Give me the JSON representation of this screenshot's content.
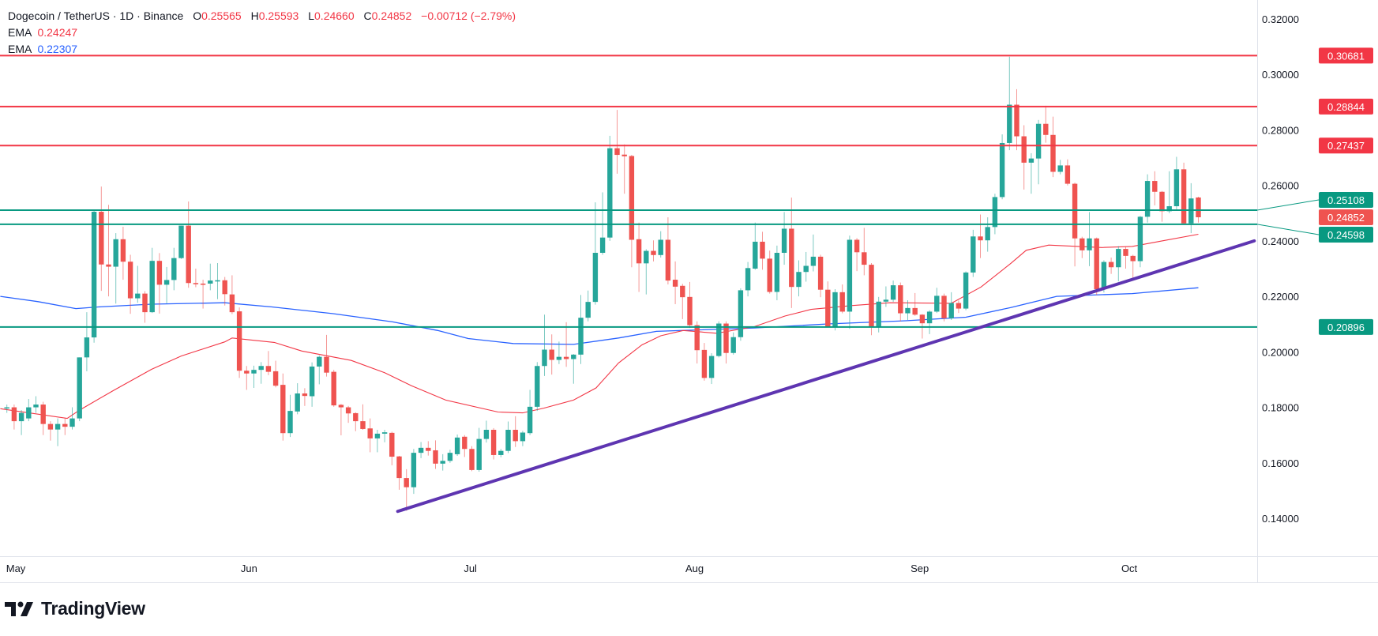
{
  "header": {
    "symbol": "Dogecoin / TetherUS · 1D · Binance",
    "open_label": "O",
    "open": "0.25565",
    "high_label": "H",
    "high": "0.25593",
    "low_label": "L",
    "low": "0.24660",
    "close_label": "C",
    "close": "0.24852",
    "change": "−0.00712 (−2.79%)",
    "ema1_label": "EMA",
    "ema1_value": "0.24247",
    "ema2_label": "EMA",
    "ema2_value": "0.22307"
  },
  "footer": {
    "logo_text": "TradingView"
  },
  "chart_data": {
    "type": "candlestick",
    "title": "Dogecoin / TetherUS · 1D · Binance",
    "ylim": [
      0.12633,
      0.32684
    ],
    "grid": false,
    "colors": {
      "up": "#26a69a",
      "down": "#ef5350",
      "ema_fast": "#f23645",
      "ema_slow": "#2962ff",
      "trendline": "#5e35b1",
      "resistance": "#f23645",
      "support": "#089981",
      "last_price": "#ef5350"
    },
    "y_ticks": [
      "0.32000",
      "0.30000",
      "0.28000",
      "0.26000",
      "0.24000",
      "0.22000",
      "0.20000",
      "0.18000",
      "0.16000",
      "0.14000"
    ],
    "x_ticks": [
      {
        "label": "May",
        "bar": 1.2
      },
      {
        "label": "Jun",
        "bar": 33.5
      },
      {
        "label": "Jul",
        "bar": 64.2
      },
      {
        "label": "Aug",
        "bar": 94.7
      },
      {
        "label": "Sep",
        "bar": 125.7
      },
      {
        "label": "Oct",
        "bar": 154.7
      }
    ],
    "ohlc": [
      [
        0.18,
        0.181,
        0.178,
        0.18
      ],
      [
        0.18,
        0.181,
        0.172,
        0.175
      ],
      [
        0.175,
        0.179,
        0.17,
        0.178
      ],
      [
        0.176,
        0.183,
        0.175,
        0.18
      ],
      [
        0.18,
        0.184,
        0.178,
        0.181
      ],
      [
        0.181,
        0.182,
        0.17,
        0.174
      ],
      [
        0.174,
        0.175,
        0.168,
        0.172
      ],
      [
        0.172,
        0.176,
        0.166,
        0.174
      ],
      [
        0.174,
        0.176,
        0.17,
        0.173
      ],
      [
        0.173,
        0.18,
        0.172,
        0.176
      ],
      [
        0.176,
        0.198,
        0.175,
        0.198
      ],
      [
        0.198,
        0.2143,
        0.193,
        0.2052
      ],
      [
        0.2052,
        0.251,
        0.2033,
        0.2505
      ],
      [
        0.2505,
        0.2596,
        0.222,
        0.2315
      ],
      [
        0.2315,
        0.253,
        0.22,
        0.2307
      ],
      [
        0.2307,
        0.2428,
        0.2174,
        0.2406
      ],
      [
        0.2406,
        0.2451,
        0.226,
        0.2325
      ],
      [
        0.2325,
        0.235,
        0.2137,
        0.2193
      ],
      [
        0.2193,
        0.231,
        0.2177,
        0.221
      ],
      [
        0.221,
        0.2219,
        0.2105,
        0.2143
      ],
      [
        0.2143,
        0.2375,
        0.214,
        0.2328
      ],
      [
        0.2328,
        0.2356,
        0.2138,
        0.2242
      ],
      [
        0.2242,
        0.2306,
        0.2175,
        0.2259
      ],
      [
        0.2259,
        0.2375,
        0.2222,
        0.2338
      ],
      [
        0.2338,
        0.2455,
        0.2335,
        0.2455
      ],
      [
        0.2455,
        0.2542,
        0.2231,
        0.2248
      ],
      [
        0.2248,
        0.23,
        0.2233,
        0.2246
      ],
      [
        0.2246,
        0.226,
        0.2156,
        0.2245
      ],
      [
        0.2246,
        0.2318,
        0.2222,
        0.2257
      ],
      [
        0.2257,
        0.232,
        0.219,
        0.2258
      ],
      [
        0.2258,
        0.227,
        0.2167,
        0.2208
      ],
      [
        0.2207,
        0.2276,
        0.2136,
        0.2143
      ],
      [
        0.2146,
        0.216,
        0.1906,
        0.1932
      ],
      [
        0.1932,
        0.1949,
        0.1863,
        0.1922
      ],
      [
        0.1922,
        0.195,
        0.187,
        0.1935
      ],
      [
        0.1935,
        0.1963,
        0.1885,
        0.1949
      ],
      [
        0.1949,
        0.2003,
        0.1916,
        0.1928
      ],
      [
        0.193,
        0.1968,
        0.1872,
        0.1878
      ],
      [
        0.1881,
        0.1922,
        0.168,
        0.1707
      ],
      [
        0.1707,
        0.1845,
        0.1693,
        0.1787
      ],
      [
        0.1785,
        0.1887,
        0.1775,
        0.185
      ],
      [
        0.185,
        0.1869,
        0.1805,
        0.1841
      ],
      [
        0.184,
        0.1962,
        0.1802,
        0.1947
      ],
      [
        0.1947,
        0.1987,
        0.1883,
        0.1982
      ],
      [
        0.1982,
        0.2061,
        0.1911,
        0.1925
      ],
      [
        0.1928,
        0.1935,
        0.1802,
        0.1807
      ],
      [
        0.1809,
        0.1812,
        0.1699,
        0.18
      ],
      [
        0.18,
        0.1805,
        0.1744,
        0.1778
      ],
      [
        0.1779,
        0.1782,
        0.1714,
        0.175
      ],
      [
        0.175,
        0.1811,
        0.1719,
        0.1722
      ],
      [
        0.1724,
        0.176,
        0.1638,
        0.1688
      ],
      [
        0.1688,
        0.1719,
        0.1638,
        0.1705
      ],
      [
        0.1705,
        0.1719,
        0.1674,
        0.171
      ],
      [
        0.1708,
        0.1712,
        0.1591,
        0.1622
      ],
      [
        0.1623,
        0.1625,
        0.1503,
        0.1545
      ],
      [
        0.1545,
        0.1577,
        0.1427,
        0.1512
      ],
      [
        0.1512,
        0.165,
        0.1488,
        0.1636
      ],
      [
        0.1636,
        0.1675,
        0.1617,
        0.1654
      ],
      [
        0.1654,
        0.1678,
        0.1626,
        0.1643
      ],
      [
        0.1645,
        0.1681,
        0.1578,
        0.1597
      ],
      [
        0.1597,
        0.1631,
        0.1572,
        0.1607
      ],
      [
        0.1607,
        0.1647,
        0.16,
        0.1636
      ],
      [
        0.1631,
        0.1702,
        0.1625,
        0.1691
      ],
      [
        0.1694,
        0.17,
        0.1621,
        0.165
      ],
      [
        0.165,
        0.166,
        0.157,
        0.1574
      ],
      [
        0.1574,
        0.1726,
        0.1568,
        0.1686
      ],
      [
        0.1686,
        0.1752,
        0.1673,
        0.1719
      ],
      [
        0.1719,
        0.1725,
        0.1612,
        0.1628
      ],
      [
        0.1628,
        0.165,
        0.162,
        0.1643
      ],
      [
        0.1643,
        0.1749,
        0.1635,
        0.1719
      ],
      [
        0.1719,
        0.1768,
        0.1657,
        0.1678
      ],
      [
        0.1678,
        0.1715,
        0.166,
        0.1709
      ],
      [
        0.1707,
        0.1863,
        0.17,
        0.1802
      ],
      [
        0.1802,
        0.1963,
        0.1787,
        0.1949
      ],
      [
        0.1949,
        0.2134,
        0.1913,
        0.2008
      ],
      [
        0.2008,
        0.2063,
        0.1918,
        0.1971
      ],
      [
        0.1971,
        0.2037,
        0.1956,
        0.1982
      ],
      [
        0.1982,
        0.2107,
        0.1946,
        0.1974
      ],
      [
        0.1974,
        0.1992,
        0.1885,
        0.199
      ],
      [
        0.199,
        0.2205,
        0.1956,
        0.2123
      ],
      [
        0.2123,
        0.2221,
        0.211,
        0.218
      ],
      [
        0.218,
        0.2539,
        0.217,
        0.2357
      ],
      [
        0.2357,
        0.2575,
        0.235,
        0.2412
      ],
      [
        0.2412,
        0.2779,
        0.24,
        0.2734
      ],
      [
        0.2734,
        0.2872,
        0.2642,
        0.271
      ],
      [
        0.2711,
        0.2748,
        0.257,
        0.2705
      ],
      [
        0.2706,
        0.271,
        0.2305,
        0.2404
      ],
      [
        0.2406,
        0.2466,
        0.2216,
        0.2319
      ],
      [
        0.2319,
        0.237,
        0.2207,
        0.2364
      ],
      [
        0.2364,
        0.2402,
        0.2326,
        0.2349
      ],
      [
        0.2349,
        0.2435,
        0.234,
        0.2404
      ],
      [
        0.2404,
        0.2485,
        0.2243,
        0.2257
      ],
      [
        0.226,
        0.2326,
        0.2172,
        0.2235
      ],
      [
        0.2238,
        0.2245,
        0.2118,
        0.2197
      ],
      [
        0.2198,
        0.2252,
        0.2086,
        0.2096
      ],
      [
        0.2096,
        0.211,
        0.1958,
        0.2006
      ],
      [
        0.2007,
        0.2032,
        0.1896,
        0.1906
      ],
      [
        0.1906,
        0.1995,
        0.1884,
        0.1985
      ],
      [
        0.1985,
        0.211,
        0.198,
        0.2102
      ],
      [
        0.2102,
        0.211,
        0.1958,
        0.1996
      ],
      [
        0.1996,
        0.207,
        0.199,
        0.2053
      ],
      [
        0.2053,
        0.2229,
        0.204,
        0.2222
      ],
      [
        0.2222,
        0.2324,
        0.22,
        0.2302
      ],
      [
        0.23,
        0.2466,
        0.2296,
        0.2397
      ],
      [
        0.2397,
        0.2433,
        0.2296,
        0.2336
      ],
      [
        0.2336,
        0.2365,
        0.221,
        0.2216
      ],
      [
        0.2216,
        0.2383,
        0.2186,
        0.2357
      ],
      [
        0.2357,
        0.2504,
        0.2314,
        0.2444
      ],
      [
        0.2444,
        0.2556,
        0.2158,
        0.2234
      ],
      [
        0.2234,
        0.233,
        0.22,
        0.2288
      ],
      [
        0.2288,
        0.236,
        0.2253,
        0.231
      ],
      [
        0.231,
        0.2423,
        0.229,
        0.2343
      ],
      [
        0.2343,
        0.235,
        0.2197,
        0.2224
      ],
      [
        0.2224,
        0.2254,
        0.209,
        0.2091
      ],
      [
        0.2091,
        0.2226,
        0.2077,
        0.2215
      ],
      [
        0.2215,
        0.2243,
        0.2139,
        0.2145
      ],
      [
        0.2145,
        0.2419,
        0.2083,
        0.2404
      ],
      [
        0.2404,
        0.241,
        0.2291,
        0.2359
      ],
      [
        0.2359,
        0.2447,
        0.2276,
        0.2314
      ],
      [
        0.2314,
        0.232,
        0.206,
        0.2091
      ],
      [
        0.2091,
        0.2198,
        0.207,
        0.2181
      ],
      [
        0.2181,
        0.2236,
        0.2162,
        0.2188
      ],
      [
        0.2188,
        0.2257,
        0.218,
        0.224
      ],
      [
        0.224,
        0.225,
        0.211,
        0.2139
      ],
      [
        0.2139,
        0.2186,
        0.2115,
        0.2158
      ],
      [
        0.2158,
        0.2212,
        0.213,
        0.2134
      ],
      [
        0.2134,
        0.2136,
        0.2048,
        0.2103
      ],
      [
        0.2103,
        0.215,
        0.2064,
        0.2145
      ],
      [
        0.2145,
        0.2231,
        0.214,
        0.2202
      ],
      [
        0.2202,
        0.221,
        0.211,
        0.2121
      ],
      [
        0.2121,
        0.2215,
        0.2115,
        0.2176
      ],
      [
        0.2176,
        0.2185,
        0.214,
        0.2156
      ],
      [
        0.2156,
        0.229,
        0.215,
        0.2286
      ],
      [
        0.2286,
        0.244,
        0.227,
        0.2416
      ],
      [
        0.2416,
        0.2495,
        0.2338,
        0.2402
      ],
      [
        0.2402,
        0.2485,
        0.2361,
        0.245
      ],
      [
        0.245,
        0.257,
        0.2424,
        0.2558
      ],
      [
        0.2558,
        0.2784,
        0.255,
        0.2753
      ],
      [
        0.2753,
        0.3064,
        0.2727,
        0.2891
      ],
      [
        0.2891,
        0.2947,
        0.2727,
        0.2777
      ],
      [
        0.2777,
        0.2817,
        0.2585,
        0.2682
      ],
      [
        0.2682,
        0.2716,
        0.257,
        0.2697
      ],
      [
        0.2697,
        0.2836,
        0.2604,
        0.2822
      ],
      [
        0.2822,
        0.2887,
        0.2754,
        0.2782
      ],
      [
        0.2782,
        0.2848,
        0.263,
        0.2649
      ],
      [
        0.2649,
        0.2692,
        0.264,
        0.2672
      ],
      [
        0.2672,
        0.2694,
        0.26,
        0.2606
      ],
      [
        0.2606,
        0.261,
        0.2308,
        0.2409
      ],
      [
        0.2409,
        0.2415,
        0.2338,
        0.2366
      ],
      [
        0.2366,
        0.2504,
        0.2309,
        0.2409
      ],
      [
        0.2409,
        0.2412,
        0.2205,
        0.2226
      ],
      [
        0.2226,
        0.233,
        0.2214,
        0.2324
      ],
      [
        0.2324,
        0.234,
        0.2281,
        0.2305
      ],
      [
        0.2305,
        0.2381,
        0.2254,
        0.2371
      ],
      [
        0.2371,
        0.238,
        0.23,
        0.2346
      ],
      [
        0.2346,
        0.235,
        0.2262,
        0.2327
      ],
      [
        0.2327,
        0.249,
        0.2305,
        0.2487
      ],
      [
        0.2487,
        0.264,
        0.2466,
        0.2616
      ],
      [
        0.2616,
        0.2651,
        0.2528,
        0.2577
      ],
      [
        0.2577,
        0.258,
        0.2469,
        0.2507
      ],
      [
        0.2507,
        0.2651,
        0.25,
        0.2525
      ],
      [
        0.2525,
        0.2703,
        0.251,
        0.2658
      ],
      [
        0.2658,
        0.2682,
        0.246,
        0.2463
      ],
      [
        0.2463,
        0.2608,
        0.2428,
        0.2553
      ],
      [
        0.25565,
        0.25593,
        0.2466,
        0.24852
      ]
    ],
    "ema_fast": [
      [
        -0.9,
        0.1795
      ],
      [
        8.3,
        0.176
      ],
      [
        10,
        0.179
      ],
      [
        14.7,
        0.1861
      ],
      [
        19.9,
        0.1937
      ],
      [
        24,
        0.1985
      ],
      [
        30,
        0.2036
      ],
      [
        31,
        0.205
      ],
      [
        36.8,
        0.2034
      ],
      [
        40.6,
        0.2003
      ],
      [
        47.4,
        0.1969
      ],
      [
        52,
        0.1925
      ],
      [
        55.7,
        0.1878
      ],
      [
        60.4,
        0.1826
      ],
      [
        67.6,
        0.1783
      ],
      [
        71,
        0.178
      ],
      [
        73.9,
        0.1797
      ],
      [
        78,
        0.1826
      ],
      [
        81.1,
        0.187
      ],
      [
        84.2,
        0.196
      ],
      [
        87.4,
        0.2025
      ],
      [
        90,
        0.2058
      ],
      [
        93.1,
        0.2077
      ],
      [
        97.7,
        0.2067
      ],
      [
        102.9,
        0.2091
      ],
      [
        107.1,
        0.2129
      ],
      [
        110.7,
        0.2153
      ],
      [
        116.4,
        0.2167
      ],
      [
        121.6,
        0.2177
      ],
      [
        130,
        0.2175
      ],
      [
        134.1,
        0.2234
      ],
      [
        138.2,
        0.2319
      ],
      [
        140.3,
        0.2366
      ],
      [
        143.4,
        0.2385
      ],
      [
        150.7,
        0.2376
      ],
      [
        154.9,
        0.238
      ],
      [
        159,
        0.24
      ],
      [
        164,
        0.2424
      ]
    ],
    "ema_slow": [
      [
        -0.9,
        0.22
      ],
      [
        4.3,
        0.2181
      ],
      [
        9.5,
        0.2156
      ],
      [
        12.6,
        0.2162
      ],
      [
        19.9,
        0.2172
      ],
      [
        30,
        0.2177
      ],
      [
        36.5,
        0.2162
      ],
      [
        44.8,
        0.2138
      ],
      [
        53.1,
        0.2108
      ],
      [
        59.3,
        0.2077
      ],
      [
        63.5,
        0.2048
      ],
      [
        69.7,
        0.203
      ],
      [
        78,
        0.2027
      ],
      [
        84.2,
        0.205
      ],
      [
        89.4,
        0.2074
      ],
      [
        102.9,
        0.2086
      ],
      [
        113.3,
        0.2101
      ],
      [
        123.7,
        0.2112
      ],
      [
        132,
        0.2125
      ],
      [
        138.2,
        0.216
      ],
      [
        144.5,
        0.22
      ],
      [
        154.9,
        0.221
      ],
      [
        164,
        0.2231
      ]
    ],
    "trendline": [
      [
        53.8,
        0.1425
      ],
      [
        171.7,
        0.24
      ]
    ],
    "levels": [
      {
        "label": "0.30681",
        "value": 0.30681,
        "kind": "resistance"
      },
      {
        "label": "0.28844",
        "value": 0.28844,
        "kind": "resistance"
      },
      {
        "label": "0.27437",
        "value": 0.27437,
        "kind": "resistance"
      },
      {
        "label": "0.25108",
        "value": 0.25108,
        "kind": "support"
      },
      {
        "label": "0.24598",
        "value": 0.24598,
        "kind": "support"
      },
      {
        "label": "0.20896",
        "value": 0.20896,
        "kind": "support"
      }
    ],
    "last_price": {
      "label": "0.24852",
      "value": 0.24852
    }
  }
}
